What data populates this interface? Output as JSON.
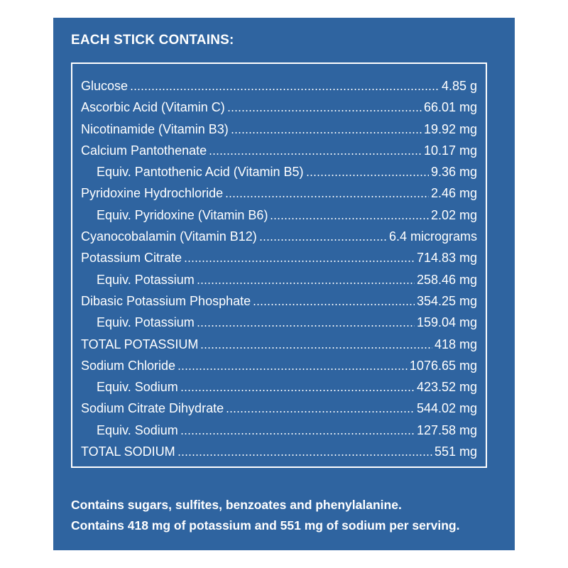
{
  "header": {
    "title": "EACH STICK CONTAINS:"
  },
  "items": [
    {
      "name": "Glucose",
      "amount": "4.85 g"
    },
    {
      "name": "Ascorbic Acid (Vitamin C)",
      "amount": "66.01 mg"
    },
    {
      "name": "Nicotinamide (Vitamin B3)",
      "amount": "19.92 mg"
    },
    {
      "name": "Calcium Pantothenate",
      "amount": "10.17 mg",
      "sub": [
        {
          "name": "Equiv. Pantothenic Acid (Vitamin B5)",
          "amount": "9.36 mg"
        }
      ]
    },
    {
      "name": "Pyridoxine Hydrochloride",
      "amount": "2.46 mg",
      "sub": [
        {
          "name": "Equiv. Pyridoxine (Vitamin B6)",
          "amount": "2.02 mg"
        }
      ]
    },
    {
      "name": "Cyanocobalamin (Vitamin B12)",
      "amount": "6.4 micrograms"
    },
    {
      "name": "Potassium Citrate",
      "amount": "714.83 mg",
      "sub": [
        {
          "name": "Equiv. Potassium",
          "amount": "258.46 mg"
        }
      ]
    },
    {
      "name": "Dibasic Potassium Phosphate",
      "amount": "354.25 mg",
      "sub": [
        {
          "name": "Equiv. Potassium",
          "amount": "159.04 mg"
        }
      ]
    },
    {
      "name": "TOTAL POTASSIUM",
      "amount": "418 mg"
    },
    {
      "name": "Sodium Chloride",
      "amount": "1076.65 mg",
      "sub": [
        {
          "name": "Equiv. Sodium",
          "amount": "423.52 mg"
        }
      ]
    },
    {
      "name": "Sodium Citrate Dihydrate",
      "amount": "544.02 mg",
      "sub": [
        {
          "name": "Equiv. Sodium",
          "amount": "127.58 mg"
        }
      ]
    },
    {
      "name": "TOTAL SODIUM",
      "amount": "551 mg"
    }
  ],
  "footer": [
    "Contains sugars, sulfites, benzoates and phenylalanine.",
    "Contains 418 mg of potassium and 551 mg of sodium per serving."
  ]
}
